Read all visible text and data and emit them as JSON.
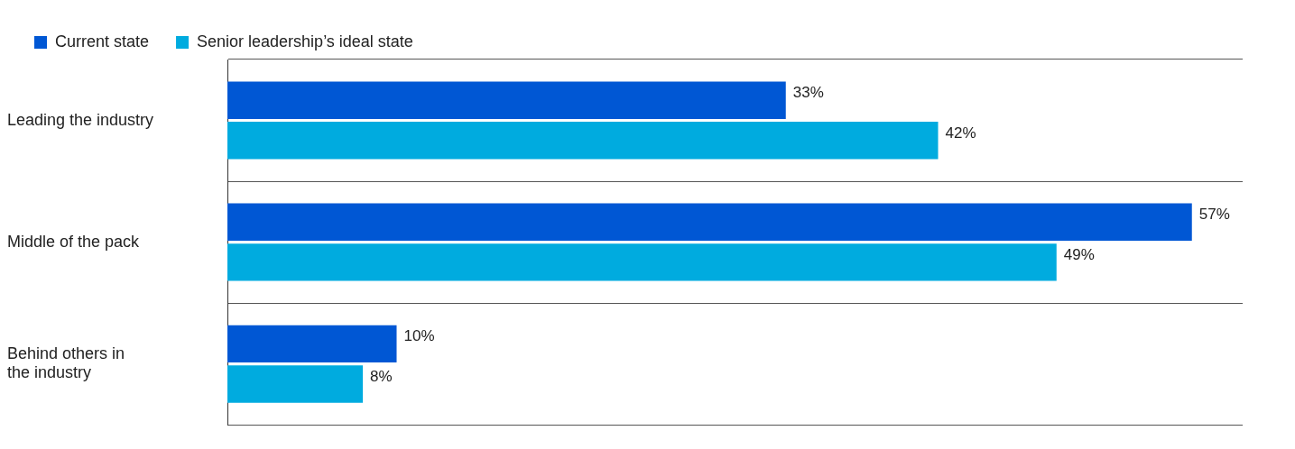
{
  "chart_data": {
    "type": "bar",
    "orientation": "horizontal",
    "categories": [
      "Leading the industry",
      "Middle of the pack",
      "Behind others in the industry"
    ],
    "series": [
      {
        "name": "Current state",
        "color": "#0057d4",
        "values": [
          33,
          57,
          10
        ],
        "value_labels": [
          "33%",
          "57%",
          "10%"
        ]
      },
      {
        "name": "Senior leadership’s ideal state",
        "color": "#00abdf",
        "values": [
          42,
          49,
          8
        ],
        "value_labels": [
          "42%",
          "49%",
          "8%"
        ]
      }
    ],
    "legend": "top left",
    "grid": "y"
  }
}
